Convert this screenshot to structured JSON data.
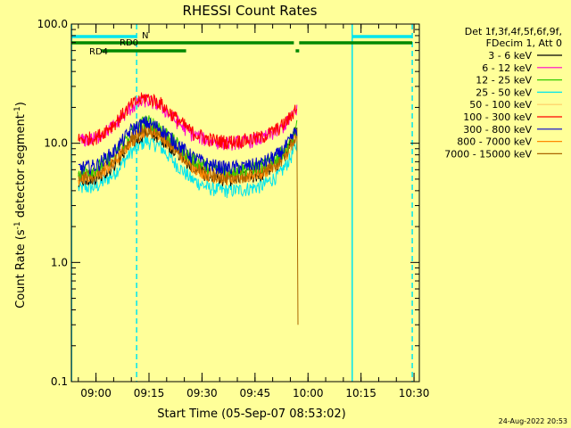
{
  "chart_data": {
    "type": "line",
    "title": "RHESSI Count Rates",
    "xlabel": "Start Time (05-Sep-07 08:53:02)",
    "ylabel_main": "Count Rate (s",
    "ylabel_sup1": "-1",
    "ylabel_mid": " detector segment",
    "ylabel_sup2": "-1",
    "ylabel_end": ")",
    "footer_date": "24-Aug-2022 20:53",
    "y_scale": "log",
    "ylim": [
      0.1,
      100.0
    ],
    "xlim": [
      "08:53:02",
      "10:31:30"
    ],
    "x_ticks": [
      "09:00",
      "09:15",
      "09:30",
      "09:45",
      "10:00",
      "10:15",
      "10:30"
    ],
    "y_ticks": [
      "0.1",
      "1.0",
      "10.0",
      "100.0"
    ],
    "legend_header": [
      "Det 1f,3f,4f,5f,6f,9f,",
      "FDecim 1, Att 0"
    ],
    "series": [
      {
        "name": "3 - 6 keV",
        "color": "#000000",
        "values": [
          {
            "x": "08:55",
            "y": 5.0
          },
          {
            "x": "09:00",
            "y": 5.2
          },
          {
            "x": "09:05",
            "y": 6.5
          },
          {
            "x": "09:10",
            "y": 10.0
          },
          {
            "x": "09:14",
            "y": 12.5
          },
          {
            "x": "09:18",
            "y": 11.5
          },
          {
            "x": "09:22",
            "y": 9.0
          },
          {
            "x": "09:27",
            "y": 6.5
          },
          {
            "x": "09:32",
            "y": 5.3
          },
          {
            "x": "09:37",
            "y": 5.0
          },
          {
            "x": "09:42",
            "y": 5.2
          },
          {
            "x": "09:47",
            "y": 5.5
          },
          {
            "x": "09:52",
            "y": 7.0
          },
          {
            "x": "09:55",
            "y": 9.5
          },
          {
            "x": "09:57",
            "y": 14.0
          }
        ]
      },
      {
        "name": "6 - 12 keV",
        "color": "#ff00cc",
        "values": [
          {
            "x": "08:55",
            "y": 10.5
          },
          {
            "x": "09:00",
            "y": 11.0
          },
          {
            "x": "09:05",
            "y": 14.0
          },
          {
            "x": "09:10",
            "y": 20.0
          },
          {
            "x": "09:14",
            "y": 23.0
          },
          {
            "x": "09:18",
            "y": 21.0
          },
          {
            "x": "09:22",
            "y": 16.0
          },
          {
            "x": "09:27",
            "y": 12.0
          },
          {
            "x": "09:32",
            "y": 10.5
          },
          {
            "x": "09:37",
            "y": 10.0
          },
          {
            "x": "09:42",
            "y": 10.3
          },
          {
            "x": "09:47",
            "y": 11.0
          },
          {
            "x": "09:52",
            "y": 13.0
          },
          {
            "x": "09:55",
            "y": 16.0
          },
          {
            "x": "09:57",
            "y": 20.0
          }
        ]
      },
      {
        "name": "12 - 25 keV",
        "color": "#33cc00",
        "values": [
          {
            "x": "08:55",
            "y": 5.8
          },
          {
            "x": "09:00",
            "y": 6.1
          },
          {
            "x": "09:05",
            "y": 8.0
          },
          {
            "x": "09:10",
            "y": 12.5
          },
          {
            "x": "09:14",
            "y": 15.5
          },
          {
            "x": "09:18",
            "y": 14.0
          },
          {
            "x": "09:22",
            "y": 10.5
          },
          {
            "x": "09:27",
            "y": 7.5
          },
          {
            "x": "09:32",
            "y": 6.3
          },
          {
            "x": "09:37",
            "y": 6.0
          },
          {
            "x": "09:42",
            "y": 6.1
          },
          {
            "x": "09:47",
            "y": 6.5
          },
          {
            "x": "09:52",
            "y": 8.0
          },
          {
            "x": "09:55",
            "y": 10.5
          },
          {
            "x": "09:57",
            "y": 14.0
          }
        ]
      },
      {
        "name": "25 - 50 keV",
        "color": "#00e5ee",
        "values": [
          {
            "x": "08:55",
            "y": 4.2
          },
          {
            "x": "09:00",
            "y": 4.3
          },
          {
            "x": "09:05",
            "y": 5.5
          },
          {
            "x": "09:10",
            "y": 8.5
          },
          {
            "x": "09:14",
            "y": 10.5
          },
          {
            "x": "09:18",
            "y": 9.5
          },
          {
            "x": "09:22",
            "y": 7.0
          },
          {
            "x": "09:27",
            "y": 5.0
          },
          {
            "x": "09:32",
            "y": 4.2
          },
          {
            "x": "09:37",
            "y": 4.0
          },
          {
            "x": "09:42",
            "y": 4.1
          },
          {
            "x": "09:47",
            "y": 4.4
          },
          {
            "x": "09:52",
            "y": 5.5
          },
          {
            "x": "09:55",
            "y": 7.5
          },
          {
            "x": "09:57",
            "y": 10.0
          }
        ]
      },
      {
        "name": "50 - 100 keV",
        "color": "#ffcc66",
        "values": [
          {
            "x": "08:55",
            "y": 5.3
          },
          {
            "x": "09:00",
            "y": 5.5
          },
          {
            "x": "09:05",
            "y": 7.0
          },
          {
            "x": "09:10",
            "y": 11.0
          },
          {
            "x": "09:14",
            "y": 13.5
          },
          {
            "x": "09:18",
            "y": 12.5
          },
          {
            "x": "09:22",
            "y": 9.5
          },
          {
            "x": "09:27",
            "y": 6.8
          },
          {
            "x": "09:32",
            "y": 5.6
          },
          {
            "x": "09:37",
            "y": 5.3
          },
          {
            "x": "09:42",
            "y": 5.4
          },
          {
            "x": "09:47",
            "y": 5.8
          },
          {
            "x": "09:52",
            "y": 7.2
          },
          {
            "x": "09:55",
            "y": 9.5
          },
          {
            "x": "09:57",
            "y": 13.0
          }
        ]
      },
      {
        "name": "100 - 300 keV",
        "color": "#ff0000",
        "values": [
          {
            "x": "08:55",
            "y": 10.8
          },
          {
            "x": "09:00",
            "y": 11.2
          },
          {
            "x": "09:05",
            "y": 14.5
          },
          {
            "x": "09:10",
            "y": 21.0
          },
          {
            "x": "09:14",
            "y": 24.5
          },
          {
            "x": "09:18",
            "y": 22.0
          },
          {
            "x": "09:22",
            "y": 17.0
          },
          {
            "x": "09:27",
            "y": 12.5
          },
          {
            "x": "09:32",
            "y": 10.8
          },
          {
            "x": "09:37",
            "y": 10.3
          },
          {
            "x": "09:42",
            "y": 10.6
          },
          {
            "x": "09:47",
            "y": 11.3
          },
          {
            "x": "09:52",
            "y": 13.5
          },
          {
            "x": "09:55",
            "y": 16.5
          },
          {
            "x": "09:57",
            "y": 21.0
          }
        ]
      },
      {
        "name": "300 - 800 keV",
        "color": "#0000cc",
        "values": [
          {
            "x": "08:55",
            "y": 6.2
          },
          {
            "x": "09:00",
            "y": 6.5
          },
          {
            "x": "09:05",
            "y": 8.5
          },
          {
            "x": "09:10",
            "y": 13.0
          },
          {
            "x": "09:14",
            "y": 15.0
          },
          {
            "x": "09:18",
            "y": 13.5
          },
          {
            "x": "09:22",
            "y": 10.5
          },
          {
            "x": "09:27",
            "y": 7.8
          },
          {
            "x": "09:32",
            "y": 6.6
          },
          {
            "x": "09:37",
            "y": 6.2
          },
          {
            "x": "09:42",
            "y": 6.4
          },
          {
            "x": "09:47",
            "y": 6.8
          },
          {
            "x": "09:52",
            "y": 8.2
          },
          {
            "x": "09:55",
            "y": 10.5
          },
          {
            "x": "09:57",
            "y": 13.5
          }
        ]
      },
      {
        "name": "800 - 7000 keV",
        "color": "#ff8800",
        "values": [
          {
            "x": "08:55",
            "y": 5.1
          },
          {
            "x": "09:00",
            "y": 5.3
          },
          {
            "x": "09:05",
            "y": 6.8
          },
          {
            "x": "09:10",
            "y": 10.5
          },
          {
            "x": "09:14",
            "y": 13.0
          },
          {
            "x": "09:18",
            "y": 12.0
          },
          {
            "x": "09:22",
            "y": 9.2
          },
          {
            "x": "09:27",
            "y": 6.6
          },
          {
            "x": "09:32",
            "y": 5.4
          },
          {
            "x": "09:37",
            "y": 5.1
          },
          {
            "x": "09:42",
            "y": 5.3
          },
          {
            "x": "09:47",
            "y": 5.7
          },
          {
            "x": "09:52",
            "y": 7.0
          },
          {
            "x": "09:55",
            "y": 9.2
          },
          {
            "x": "09:57",
            "y": 12.5
          }
        ]
      },
      {
        "name": "7000 - 15000 keV",
        "color": "#aa6600",
        "values": [
          {
            "x": "08:55",
            "y": 5.2
          },
          {
            "x": "09:00",
            "y": 5.4
          },
          {
            "x": "09:05",
            "y": 7.0
          },
          {
            "x": "09:10",
            "y": 10.8
          },
          {
            "x": "09:14",
            "y": 13.2
          },
          {
            "x": "09:18",
            "y": 12.2
          },
          {
            "x": "09:22",
            "y": 9.4
          },
          {
            "x": "09:27",
            "y": 6.7
          },
          {
            "x": "09:32",
            "y": 5.5
          },
          {
            "x": "09:37",
            "y": 5.2
          },
          {
            "x": "09:42",
            "y": 5.4
          },
          {
            "x": "09:47",
            "y": 5.8
          },
          {
            "x": "09:52",
            "y": 7.1
          },
          {
            "x": "09:55",
            "y": 9.3
          },
          {
            "x": "09:57",
            "y": 12.8
          },
          {
            "x": "09:57:10",
            "y": 0.3
          }
        ]
      }
    ],
    "status_bars": [
      {
        "label": "N",
        "color": "#00e5ee",
        "segments": [
          [
            "08:53:02",
            "09:11:30"
          ],
          [
            "10:12:30",
            "10:29:30"
          ]
        ]
      },
      {
        "label": "RD0",
        "color": "#008800",
        "segments": [
          [
            "08:53:02",
            "09:56:00"
          ],
          [
            "09:57:30",
            "10:29:30"
          ]
        ]
      },
      {
        "label": "RD4",
        "color": "#008800",
        "segments": [
          [
            "09:01:30",
            "09:25:30"
          ],
          [
            "09:56:30",
            "09:57:30"
          ]
        ]
      }
    ],
    "vlines": [
      {
        "x": "08:53:05",
        "style": "solid",
        "color": "#00e5ee"
      },
      {
        "x": "09:11:30",
        "style": "dashed",
        "color": "#00e5ee"
      },
      {
        "x": "10:12:30",
        "style": "solid",
        "color": "#00e5ee"
      },
      {
        "x": "10:29:30",
        "style": "dashed",
        "color": "#00e5ee"
      }
    ]
  }
}
